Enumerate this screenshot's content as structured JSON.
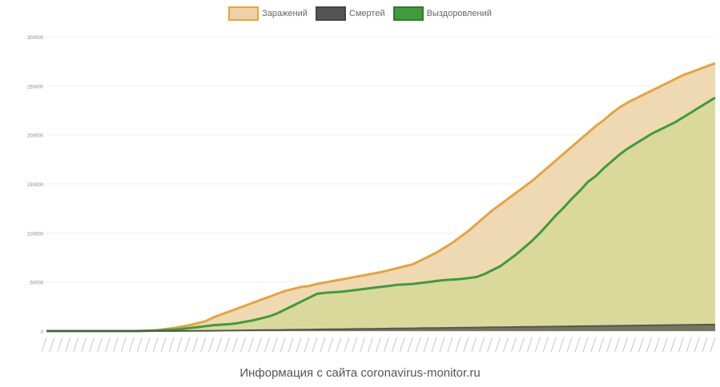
{
  "chart_data": {
    "type": "area",
    "legend_position": "top-center",
    "y_ticks": [
      "0",
      "50000",
      "100000",
      "150000",
      "200000",
      "250000",
      "300000"
    ],
    "ylim": [
      0,
      300000
    ],
    "x_count": 85,
    "series": [
      {
        "name": "Заражений",
        "color": "#e6a33c",
        "fill": "#ecd2a6",
        "values": [
          0,
          0,
          0,
          0,
          0,
          0,
          0,
          0,
          0,
          0,
          0,
          0,
          200,
          500,
          1000,
          2000,
          3000,
          4500,
          6000,
          8000,
          10000,
          14000,
          17000,
          20000,
          23000,
          26000,
          29000,
          32000,
          35000,
          38000,
          41000,
          43000,
          45000,
          46000,
          48000,
          49500,
          51000,
          52500,
          54000,
          55500,
          57000,
          58500,
          60000,
          62000,
          64000,
          66000,
          68000,
          72000,
          76000,
          80000,
          85000,
          90000,
          96000,
          102000,
          109000,
          116000,
          123000,
          129000,
          135000,
          141000,
          147000,
          153000,
          160000,
          167000,
          174000,
          181000,
          188000,
          195000,
          202000,
          209000,
          215000,
          222000,
          228000,
          233000,
          237000,
          241000,
          245000,
          249000,
          253000,
          257000,
          261000,
          264000,
          267000,
          270000,
          273000
        ]
      },
      {
        "name": "Смертей",
        "color": "#555555",
        "fill": "#6a6a5a",
        "values": [
          0,
          0,
          0,
          0,
          0,
          0,
          0,
          0,
          0,
          0,
          0,
          0,
          0,
          0,
          0,
          0,
          0,
          50,
          100,
          150,
          200,
          300,
          400,
          500,
          600,
          700,
          800,
          900,
          1000,
          1100,
          1200,
          1300,
          1400,
          1500,
          1600,
          1700,
          1800,
          1900,
          2000,
          2100,
          2200,
          2300,
          2400,
          2500,
          2600,
          2700,
          2800,
          2900,
          3000,
          3100,
          3200,
          3300,
          3400,
          3500,
          3600,
          3700,
          3800,
          3900,
          4000,
          4100,
          4200,
          4300,
          4400,
          4500,
          4600,
          4700,
          4800,
          4900,
          5000,
          5100,
          5200,
          5300,
          5400,
          5500,
          5600,
          5700,
          5800,
          5900,
          6000,
          6100,
          6200,
          6300,
          6400,
          6500,
          6600
        ]
      },
      {
        "name": "Выздоровлений",
        "color": "#3f9b3c",
        "fill": "#d6d896",
        "values": [
          0,
          0,
          0,
          0,
          0,
          0,
          0,
          0,
          0,
          0,
          0,
          0,
          100,
          300,
          500,
          1000,
          1500,
          2000,
          3000,
          4000,
          5000,
          6000,
          6500,
          7000,
          8000,
          9500,
          11000,
          13000,
          15000,
          18000,
          22000,
          26000,
          30000,
          34000,
          38000,
          39000,
          39500,
          40000,
          41000,
          42000,
          43000,
          44000,
          45000,
          46000,
          47000,
          47500,
          48000,
          49000,
          50000,
          51000,
          52000,
          52500,
          53000,
          54000,
          55000,
          58000,
          62000,
          66000,
          72000,
          78000,
          85000,
          92000,
          100000,
          109000,
          118000,
          126000,
          135000,
          143000,
          152000,
          158000,
          166000,
          173000,
          180000,
          186000,
          191000,
          196000,
          201000,
          205000,
          209000,
          213000,
          218000,
          223000,
          228000,
          233000,
          238000
        ]
      }
    ],
    "caption": "Информация с сайта coronavirus-monitor.ru"
  }
}
